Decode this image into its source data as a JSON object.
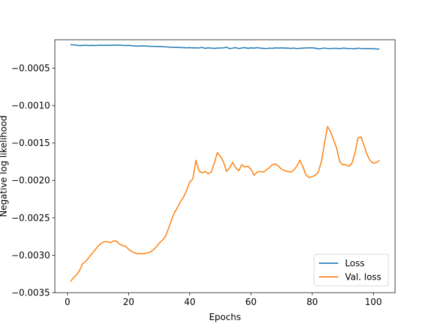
{
  "chart_data": {
    "type": "line",
    "title": "",
    "xlabel": "Epochs",
    "ylabel": "Negative log likelihood",
    "xlim": [
      -4.1,
      107.1
    ],
    "ylim": [
      -0.0035,
      -0.00012
    ],
    "xticks": [
      0,
      20,
      40,
      60,
      80,
      100
    ],
    "yticks": [
      -0.0035,
      -0.003,
      -0.0025,
      -0.002,
      -0.0015,
      -0.001,
      -0.0005
    ],
    "ytick_labels": [
      "−0.0035",
      "−0.0030",
      "−0.0025",
      "−0.0020",
      "−0.0015",
      "−0.0010",
      "−0.0005"
    ],
    "grid": false,
    "legend_position": "lower-right",
    "series": [
      {
        "name": "Loss",
        "color": "#1f77b4",
        "x": [
          1,
          2,
          3,
          4,
          5,
          6,
          7,
          8,
          9,
          10,
          11,
          12,
          13,
          14,
          15,
          16,
          17,
          18,
          19,
          20,
          21,
          22,
          23,
          24,
          25,
          26,
          27,
          28,
          29,
          30,
          31,
          32,
          33,
          34,
          35,
          36,
          37,
          38,
          39,
          40,
          41,
          42,
          43,
          44,
          45,
          46,
          47,
          48,
          49,
          50,
          51,
          52,
          53,
          54,
          55,
          56,
          57,
          58,
          59,
          60,
          61,
          62,
          63,
          64,
          65,
          66,
          67,
          68,
          69,
          70,
          71,
          72,
          73,
          74,
          75,
          76,
          77,
          78,
          79,
          80,
          81,
          82,
          83,
          84,
          85,
          86,
          87,
          88,
          89,
          90,
          91,
          92,
          93,
          94,
          95,
          96,
          97,
          98,
          99,
          100,
          101,
          102
        ],
        "y": [
          -0.000185,
          -0.00019,
          -0.00019,
          -0.0002,
          -0.000195,
          -0.000195,
          -0.000197,
          -0.000195,
          -0.000197,
          -0.000195,
          -0.000193,
          -0.000195,
          -0.000193,
          -0.000195,
          -0.000193,
          -0.000192,
          -0.000192,
          -0.000195,
          -0.000197,
          -0.000195,
          -0.0002,
          -0.000202,
          -0.000205,
          -0.000203,
          -0.000202,
          -0.000205,
          -0.000208,
          -0.000207,
          -0.00021,
          -0.00021,
          -0.000212,
          -0.000215,
          -0.000218,
          -0.00022,
          -0.000222,
          -0.00022,
          -0.000225,
          -0.000225,
          -0.000228,
          -0.000225,
          -0.000228,
          -0.000228,
          -0.00023,
          -0.000222,
          -0.000235,
          -0.000228,
          -0.000232,
          -0.000235,
          -0.000232,
          -0.00023,
          -0.000228,
          -0.00022,
          -0.000238,
          -0.000232,
          -0.000225,
          -0.000238,
          -0.00023,
          -0.000225,
          -0.000235,
          -0.000228,
          -0.000232,
          -0.000225,
          -0.000232,
          -0.000235,
          -0.000238,
          -0.000232,
          -0.000235,
          -0.000228,
          -0.000232,
          -0.000228,
          -0.000232,
          -0.000232,
          -0.000235,
          -0.000232,
          -0.000238,
          -0.000235,
          -0.000232,
          -0.00023,
          -0.000228,
          -0.000228,
          -0.000232,
          -0.000242,
          -0.000238,
          -0.00023,
          -0.000238,
          -0.000238,
          -0.000235,
          -0.000235,
          -0.00024,
          -0.000232,
          -0.000235,
          -0.000238,
          -0.000238,
          -0.000242,
          -0.000232,
          -0.000238,
          -0.000238,
          -0.00024,
          -0.00024,
          -0.000238,
          -0.000245,
          -0.000242
        ]
      },
      {
        "name": "Val. loss",
        "color": "#ff7f0e",
        "x": [
          1,
          2,
          3,
          4,
          5,
          6,
          7,
          8,
          9,
          10,
          11,
          12,
          13,
          14,
          15,
          16,
          17,
          18,
          19,
          20,
          21,
          22,
          23,
          24,
          25,
          26,
          27,
          28,
          29,
          30,
          31,
          32,
          33,
          34,
          35,
          36,
          37,
          38,
          39,
          40,
          41,
          42,
          43,
          44,
          45,
          46,
          47,
          48,
          49,
          50,
          51,
          52,
          53,
          54,
          55,
          56,
          57,
          58,
          59,
          60,
          61,
          62,
          63,
          64,
          65,
          66,
          67,
          68,
          69,
          70,
          71,
          72,
          73,
          74,
          75,
          76,
          77,
          78,
          79,
          80,
          81,
          82,
          83,
          84,
          85,
          86,
          87,
          88,
          89,
          90,
          91,
          92,
          93,
          94,
          95,
          96,
          97,
          98,
          99,
          100,
          101,
          102
        ],
        "y": [
          -0.00335,
          -0.0033,
          -0.00326,
          -0.0032,
          -0.00311,
          -0.00308,
          -0.00303,
          -0.00298,
          -0.00293,
          -0.00288,
          -0.00284,
          -0.00282,
          -0.00282,
          -0.00283,
          -0.00281,
          -0.00281,
          -0.00285,
          -0.00287,
          -0.00288,
          -0.00292,
          -0.00295,
          -0.00297,
          -0.00298,
          -0.00298,
          -0.00298,
          -0.00297,
          -0.00296,
          -0.00293,
          -0.00289,
          -0.00284,
          -0.0028,
          -0.00275,
          -0.00265,
          -0.00253,
          -0.00243,
          -0.00236,
          -0.00228,
          -0.00222,
          -0.00213,
          -0.00202,
          -0.00198,
          -0.00173,
          -0.00187,
          -0.0019,
          -0.00188,
          -0.00191,
          -0.00189,
          -0.00177,
          -0.00163,
          -0.00168,
          -0.00175,
          -0.00188,
          -0.00183,
          -0.00176,
          -0.00183,
          -0.00187,
          -0.00179,
          -0.00182,
          -0.00181,
          -0.00185,
          -0.00193,
          -0.00189,
          -0.00188,
          -0.00189,
          -0.00186,
          -0.00183,
          -0.00179,
          -0.00178,
          -0.00181,
          -0.00185,
          -0.00187,
          -0.00188,
          -0.00189,
          -0.00186,
          -0.00181,
          -0.00173,
          -0.00182,
          -0.00193,
          -0.00196,
          -0.00195,
          -0.00193,
          -0.00189,
          -0.00175,
          -0.00151,
          -0.00128,
          -0.00135,
          -0.00146,
          -0.00157,
          -0.00175,
          -0.00179,
          -0.00179,
          -0.00181,
          -0.00177,
          -0.00163,
          -0.00143,
          -0.00142,
          -0.00154,
          -0.00166,
          -0.00174,
          -0.00177,
          -0.00176,
          -0.00173
        ]
      }
    ]
  }
}
